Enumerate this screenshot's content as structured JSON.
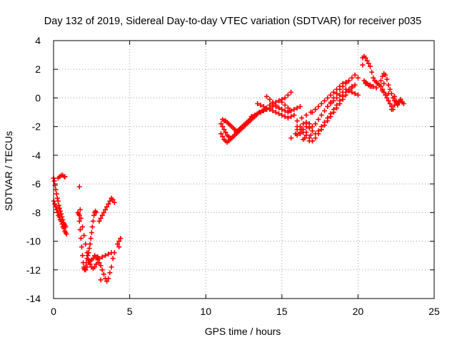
{
  "chart_data": {
    "type": "scatter",
    "title": "Day 132 of 2019, Sidereal Day-to-day VTEC variation (SDTVAR) for receiver p035",
    "xlabel": "GPS time / hours",
    "ylabel": "SDTVAR / TECUs",
    "xlim": [
      0,
      25
    ],
    "ylim": [
      -14,
      4
    ],
    "x_ticks": [
      0,
      5,
      10,
      15,
      20,
      25
    ],
    "y_ticks": [
      -14,
      -12,
      -10,
      -8,
      -6,
      -4,
      -2,
      0,
      2,
      4
    ],
    "x_tick_labels": [
      "0",
      "5",
      "10",
      "15",
      "20",
      "25"
    ],
    "y_tick_labels": [
      "-14",
      "-12",
      "-10",
      "-8",
      "-6",
      "-4",
      "-2",
      "0",
      "2",
      "4"
    ],
    "grid": true,
    "marker": "plus",
    "color": "#ff0000",
    "series": [
      {
        "x": [
          0.0,
          0.05,
          0.1,
          0.15,
          0.2,
          0.25,
          0.3,
          0.35,
          0.4,
          0.45,
          0.5,
          0.55,
          0.6,
          0.65,
          0.7,
          0.75,
          0.8,
          0.02,
          0.08,
          0.14,
          0.2,
          0.26,
          0.32,
          0.38,
          0.44,
          0.5,
          0.56,
          0.62,
          0.68,
          0.74,
          0.8,
          0.85,
          0.3,
          0.4,
          0.5,
          0.6,
          0.7,
          0.75,
          1.6,
          1.7,
          1.75,
          1.8,
          1.85,
          1.9,
          1.95,
          2.0,
          2.05,
          2.1,
          2.15,
          2.2,
          2.25,
          2.3,
          2.35,
          2.4,
          2.45,
          2.5,
          2.55,
          2.6,
          2.65,
          2.7,
          2.75,
          2.8,
          1.7,
          1.8,
          1.9,
          2.0,
          2.1,
          2.2,
          2.3,
          2.4,
          2.5,
          2.6,
          2.7,
          2.8,
          2.0,
          2.1,
          2.2,
          2.3,
          2.4,
          2.5,
          2.6,
          2.7,
          2.8,
          2.9,
          3.0,
          3.1,
          3.2,
          3.3,
          3.4,
          3.5,
          3.6,
          3.7,
          3.8,
          3.9,
          4.0,
          3.0,
          3.1,
          3.2,
          3.3,
          3.4,
          3.5,
          3.6,
          3.7,
          3.8,
          3.9,
          4.0,
          3.0,
          3.2,
          3.4,
          3.6,
          3.8,
          4.2,
          4.3,
          4.4,
          4.3,
          1.7,
          1.65,
          1.75,
          2.9,
          3.1
        ],
        "y": [
          -5.6,
          -5.8,
          -6.1,
          -6.4,
          -6.7,
          -7.0,
          -7.2,
          -7.5,
          -7.7,
          -7.9,
          -8.1,
          -8.3,
          -8.5,
          -8.7,
          -8.8,
          -8.9,
          -9.0,
          -7.2,
          -7.4,
          -7.6,
          -7.8,
          -8.0,
          -8.2,
          -8.3,
          -8.5,
          -8.6,
          -8.8,
          -9.0,
          -9.1,
          -9.3,
          -9.4,
          -9.5,
          -5.6,
          -5.5,
          -5.4,
          -5.4,
          -5.5,
          -5.5,
          -8.0,
          -8.6,
          -9.2,
          -9.8,
          -10.4,
          -11.0,
          -11.5,
          -11.8,
          -12.0,
          -11.8,
          -11.5,
          -11.2,
          -11.0,
          -10.8,
          -10.5,
          -10.2,
          -9.8,
          -9.4,
          -9.0,
          -8.6,
          -8.2,
          -8.0,
          -7.9,
          -8.0,
          -8.2,
          -8.4,
          -9.0,
          -9.6,
          -10.2,
          -10.8,
          -11.3,
          -11.6,
          -11.8,
          -11.9,
          -11.8,
          -11.6,
          -11.9,
          -12.0,
          -11.8,
          -11.5,
          -11.4,
          -11.3,
          -11.2,
          -11.0,
          -11.1,
          -11.3,
          -11.5,
          -11.7,
          -12.0,
          -12.3,
          -12.6,
          -12.8,
          -12.6,
          -12.2,
          -11.8,
          -11.2,
          -10.8,
          -8.6,
          -8.4,
          -8.2,
          -8.0,
          -7.8,
          -7.6,
          -7.4,
          -7.2,
          -7.0,
          -7.1,
          -7.3,
          -11.2,
          -11.1,
          -11.0,
          -10.9,
          -10.8,
          -10.2,
          -10.0,
          -9.8,
          -10.4,
          -6.2,
          -8.1,
          -7.8,
          -11.1,
          -12.7
        ]
      },
      {
        "x": [
          11.0,
          11.1,
          11.2,
          11.3,
          11.4,
          11.5,
          11.6,
          11.7,
          11.8,
          11.9,
          12.0,
          12.1,
          12.2,
          12.3,
          12.4,
          12.5,
          12.6,
          12.7,
          12.8,
          12.9,
          13.0,
          13.1,
          13.2,
          13.3,
          13.4,
          13.5,
          13.6,
          13.7,
          13.8,
          13.9,
          14.0,
          11.0,
          11.1,
          11.2,
          11.3,
          11.4,
          11.5,
          11.6,
          11.7,
          11.8,
          11.9,
          12.0,
          12.1,
          12.2,
          12.3,
          12.4,
          12.5,
          12.6,
          12.7,
          12.8,
          12.9,
          13.0,
          13.1,
          13.2,
          13.3,
          13.4,
          13.5,
          11.1,
          11.2,
          11.3,
          11.4,
          11.5,
          11.6,
          11.7,
          11.8,
          11.9,
          12.0,
          12.1,
          12.2,
          12.3,
          12.4,
          12.5,
          13.0,
          13.2,
          13.4,
          13.6,
          13.8,
          14.0,
          14.2,
          14.4,
          14.6,
          14.8,
          15.0,
          15.2,
          15.4,
          15.6,
          15.8,
          16.0,
          16.2,
          13.4,
          13.6,
          13.8,
          14.0,
          14.2,
          14.4,
          14.6,
          14.8,
          15.0,
          15.2,
          15.4,
          15.6,
          15.8,
          14.2,
          14.4,
          14.6,
          14.8,
          15.0,
          15.2,
          15.4,
          15.6,
          14.0,
          14.2,
          14.4,
          14.6,
          14.8,
          15.0,
          15.2,
          15.4,
          15.5,
          16.5,
          16.8,
          17.0,
          16.6,
          16.0,
          16.9,
          15.6,
          15.9,
          16.3,
          16.4
        ],
        "y": [
          -1.8,
          -2.0,
          -2.2,
          -2.4,
          -2.6,
          -2.7,
          -2.8,
          -2.8,
          -2.7,
          -2.6,
          -2.4,
          -2.3,
          -2.2,
          -2.1,
          -2.0,
          -1.9,
          -1.8,
          -1.7,
          -1.6,
          -1.5,
          -1.4,
          -1.3,
          -1.3,
          -1.2,
          -1.1,
          -1.0,
          -1.0,
          -0.9,
          -0.9,
          -0.8,
          -0.8,
          -2.5,
          -2.7,
          -2.9,
          -3.0,
          -3.1,
          -3.0,
          -2.9,
          -2.8,
          -2.7,
          -2.6,
          -2.5,
          -2.4,
          -2.3,
          -2.2,
          -2.1,
          -2.0,
          -1.9,
          -1.8,
          -1.7,
          -1.6,
          -1.5,
          -1.4,
          -1.3,
          -1.2,
          -1.1,
          -1.0,
          -1.5,
          -1.6,
          -1.6,
          -1.7,
          -1.8,
          -1.9,
          -2.0,
          -2.1,
          -2.2,
          -2.3,
          -2.3,
          -2.2,
          -2.1,
          -2.0,
          -2.0,
          -1.3,
          -1.2,
          -1.1,
          -1.0,
          -0.9,
          -0.8,
          -0.7,
          -0.6,
          -0.6,
          -0.7,
          -0.8,
          -0.9,
          -1.0,
          -0.9,
          -0.8,
          -0.7,
          -0.6,
          -0.4,
          -0.5,
          -0.6,
          -0.7,
          -0.8,
          -0.9,
          -1.0,
          -1.1,
          -1.2,
          -1.3,
          -1.4,
          -1.3,
          -1.2,
          -0.5,
          -0.4,
          -0.3,
          -0.2,
          -0.1,
          0.0,
          0.2,
          0.4,
          0.1,
          -0.1,
          -0.3,
          -0.5,
          -0.7,
          -0.3,
          -0.5,
          -0.7,
          -0.9,
          -2.8,
          -3.0,
          -3.0,
          -2.4,
          -2.0,
          -2.6,
          -2.8,
          -2.5,
          -2.2,
          -2.9
        ]
      },
      {
        "x": [
          16.0,
          16.2,
          16.4,
          16.6,
          16.8,
          17.0,
          17.2,
          17.4,
          17.6,
          17.8,
          18.0,
          18.2,
          18.4,
          18.6,
          18.8,
          19.0,
          19.2,
          19.4,
          19.6,
          19.8,
          20.0,
          16.0,
          16.2,
          16.4,
          16.6,
          16.8,
          17.0,
          17.2,
          17.4,
          17.6,
          17.8,
          18.0,
          18.2,
          18.4,
          18.6,
          18.8,
          19.0,
          19.2,
          19.4,
          19.6,
          19.8,
          16.2,
          16.4,
          16.6,
          16.8,
          17.0,
          17.2,
          17.4,
          17.6,
          17.8,
          18.0,
          18.2,
          18.4,
          18.6,
          18.8,
          19.0,
          19.2,
          19.4,
          19.6,
          17.0,
          17.2,
          17.4,
          17.6,
          17.8,
          18.0,
          18.2,
          18.4,
          18.6,
          18.8,
          19.0,
          19.2,
          19.4,
          18.0,
          18.2,
          18.4,
          18.6,
          18.8,
          19.0,
          19.2,
          19.4,
          19.6,
          19.8,
          20.0,
          16.0,
          16.3,
          16.6,
          16.9,
          17.2
        ],
        "y": [
          -2.2,
          -2.0,
          -1.8,
          -1.7,
          -1.8,
          -2.0,
          -1.8,
          -1.5,
          -1.2,
          -0.9,
          -0.6,
          -0.3,
          0.0,
          0.3,
          0.6,
          0.8,
          1.0,
          1.2,
          1.4,
          1.6,
          1.4,
          -2.6,
          -2.5,
          -2.4,
          -2.6,
          -2.8,
          -3.0,
          -2.8,
          -2.5,
          -2.2,
          -1.9,
          -1.6,
          -1.3,
          -1.0,
          -0.7,
          -0.4,
          -0.1,
          0.2,
          0.5,
          0.7,
          0.9,
          -2.4,
          -2.2,
          -2.0,
          -2.1,
          -2.3,
          -2.5,
          -2.3,
          -2.0,
          -1.7,
          -1.4,
          -1.1,
          -0.8,
          -0.5,
          -0.2,
          0.1,
          0.4,
          0.6,
          0.8,
          -1.0,
          -0.8,
          -0.6,
          -0.4,
          -0.2,
          0.0,
          0.2,
          0.4,
          0.6,
          0.8,
          1.0,
          1.1,
          1.2,
          -0.6,
          -0.4,
          -0.2,
          0.0,
          0.2,
          0.4,
          0.6,
          0.5,
          0.4,
          0.3,
          0.2,
          -1.6,
          -1.4,
          -1.2,
          -1.0,
          -0.8
        ]
      },
      {
        "x": [
          20.3,
          20.4,
          20.5,
          20.6,
          20.7,
          20.8,
          20.9,
          21.0,
          21.1,
          21.2,
          21.3,
          21.4,
          21.5,
          21.6,
          21.7,
          21.8,
          21.9,
          22.0,
          22.1,
          22.2,
          22.3,
          22.4,
          22.5,
          22.6,
          22.7,
          22.8,
          22.9,
          23.0,
          20.4,
          20.5,
          20.6,
          20.7,
          20.8,
          20.9,
          21.0,
          21.5,
          21.6,
          21.7,
          21.8,
          21.9,
          22.0,
          22.1,
          22.2,
          22.3,
          22.4,
          22.5,
          20.3,
          20.5,
          20.8,
          21.2,
          21.6,
          22.0,
          22.4,
          22.8,
          21.7,
          22.2,
          22.6,
          22.9
        ],
        "y": [
          2.8,
          2.9,
          2.8,
          2.6,
          2.4,
          2.2,
          1.8,
          1.4,
          1.2,
          1.1,
          1.0,
          0.9,
          1.2,
          1.5,
          1.7,
          1.6,
          1.3,
          0.9,
          0.6,
          0.3,
          0.0,
          -0.2,
          -0.3,
          -0.4,
          -0.3,
          -0.2,
          -0.3,
          -0.4,
          1.2,
          1.1,
          1.0,
          0.9,
          0.8,
          0.8,
          0.8,
          0.8,
          0.6,
          0.4,
          0.2,
          0.0,
          -0.2,
          -0.4,
          -0.6,
          -0.8,
          -0.5,
          -0.2,
          2.3,
          1.0,
          0.9,
          0.7,
          0.5,
          0.3,
          0.1,
          -0.1,
          1.0,
          -0.8,
          -0.5,
          -0.3
        ]
      }
    ]
  }
}
